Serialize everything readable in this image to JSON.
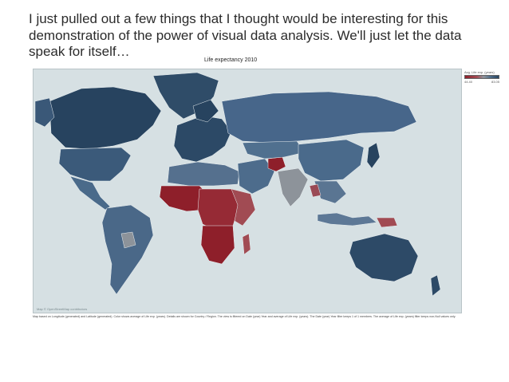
{
  "slide": {
    "headline": "I just pulled out a few things that I thought would be interesting for this demonstration of the power of visual data analysis. We'll just let the data speak for itself…",
    "chart_title": "Life expectancy 2010",
    "legend": {
      "title": "Avg. Life exp. (years)",
      "min_label": "44.40",
      "max_label": "83.05"
    },
    "map_attribution": "Map © OpenStreetMap contributors",
    "caption": "Map based on Longitude (generated) and Latitude (generated). Color shows average of Life exp. (years). Details are shown for Country / Region. The view is filtered on Date (year) Year and average of Life exp. (years). The Date (year) Year filter keeps 1 of 1 members. The average of Life exp. (years) filter keeps non-Null values only."
  },
  "colors": {
    "ocean": "#d6e0e3",
    "high": "#27435f",
    "mid_high": "#4f6c88",
    "no_data": "#8d939a",
    "low": "#a14b53",
    "very_low": "#8e1f2a",
    "headline_text": "#2b2b2b"
  }
}
